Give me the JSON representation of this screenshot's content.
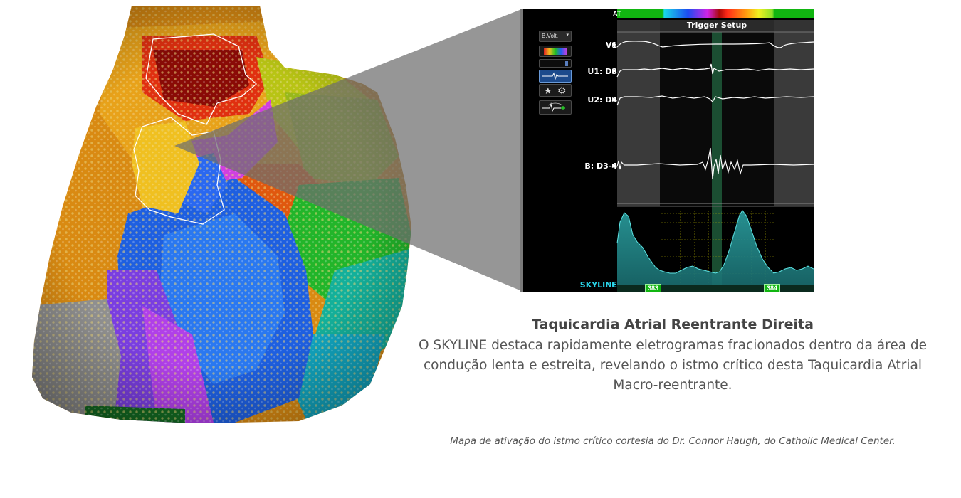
{
  "panel": {
    "at_label": "AT",
    "trigger_label": "Trigger Setup",
    "dropdown_value": "B.Volt.",
    "leads": [
      "V1",
      "U1: D3",
      "U2: D4",
      "B: D3-4"
    ],
    "skyline_label": "SKYLINE",
    "marker_left": "383",
    "marker_right": "384"
  },
  "caption": {
    "title": "Taquicardia Atrial Reentrante Direita",
    "body": "O SKYLINE destaca rapidamente eletrogramas fracionados dentro da área de condução lenta e estreita, revelando o istmo crítico desta Taquicardia Atrial Macro-reentrante.",
    "credit": "Mapa de ativação do istmo crítico cortesia do Dr. Connor Haugh, do Catholic Medical Center."
  },
  "colors": {
    "accent_green": "#11b511",
    "skyline_fill": "#1e8a8f",
    "skyline_text": "#2ad4e8"
  }
}
